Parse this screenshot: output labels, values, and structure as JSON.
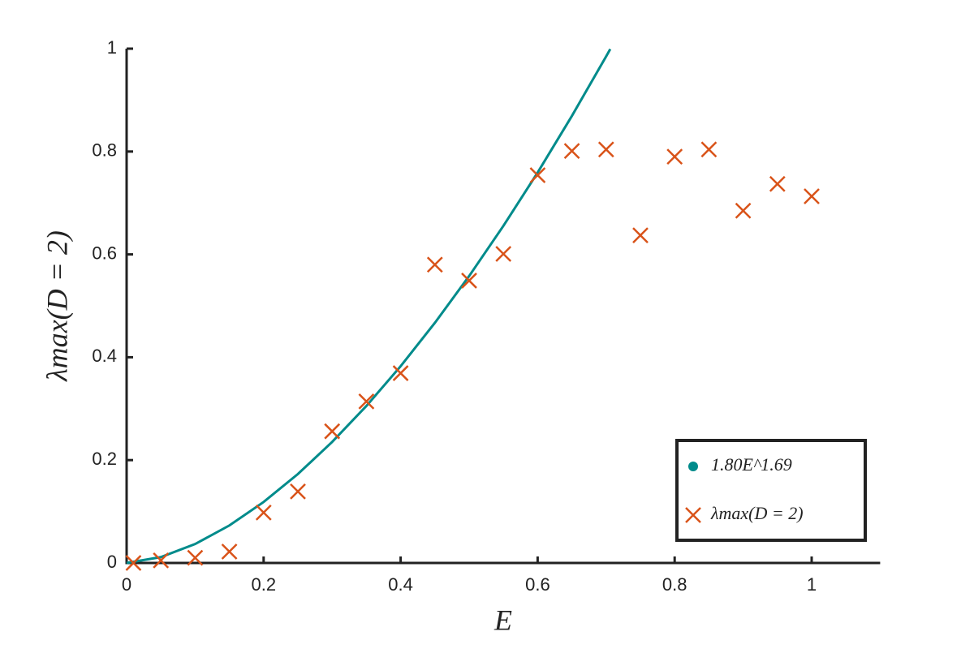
{
  "chart_data": {
    "type": "scatter",
    "xlabel": "E",
    "ylabel": "λmax(D = 2)",
    "xlim": [
      0,
      1.1
    ],
    "ylim": [
      0,
      1
    ],
    "xticks": [
      0,
      0.2,
      0.4,
      0.6,
      0.8,
      1
    ],
    "yticks": [
      0,
      0.2,
      0.4,
      0.6,
      0.8,
      1
    ],
    "grid": false,
    "legend": "lower right",
    "series": [
      {
        "name": "1.80E^1.69",
        "color": "#008b8b",
        "kind": "line",
        "x": [
          0,
          0.05,
          0.1,
          0.15,
          0.2,
          0.25,
          0.3,
          0.35,
          0.4,
          0.45,
          0.5,
          0.55,
          0.6,
          0.65,
          0.7,
          0.706
        ],
        "values": [
          0,
          0.0114,
          0.0368,
          0.0729,
          0.1186,
          0.1729,
          0.2353,
          0.3053,
          0.3826,
          0.4669,
          0.5579,
          0.6554,
          0.7592,
          0.8692,
          0.9851,
          0.9992
        ]
      },
      {
        "name": "λmax(D = 2)",
        "color": "#d95319",
        "kind": "cross",
        "x": [
          0.01,
          0.05,
          0.1,
          0.15,
          0.2,
          0.25,
          0.3,
          0.35,
          0.4,
          0.45,
          0.5,
          0.55,
          0.6,
          0.65,
          0.7,
          0.75,
          0.8,
          0.85,
          0.9,
          0.95,
          1
        ],
        "values": [
          0,
          0.005,
          0.01,
          0.022,
          0.098,
          0.139,
          0.256,
          0.314,
          0.369,
          0.58,
          0.549,
          0.601,
          0.754,
          0.801,
          0.804,
          0.637,
          0.79,
          0.804,
          0.685,
          0.737,
          0.713
        ]
      }
    ]
  }
}
